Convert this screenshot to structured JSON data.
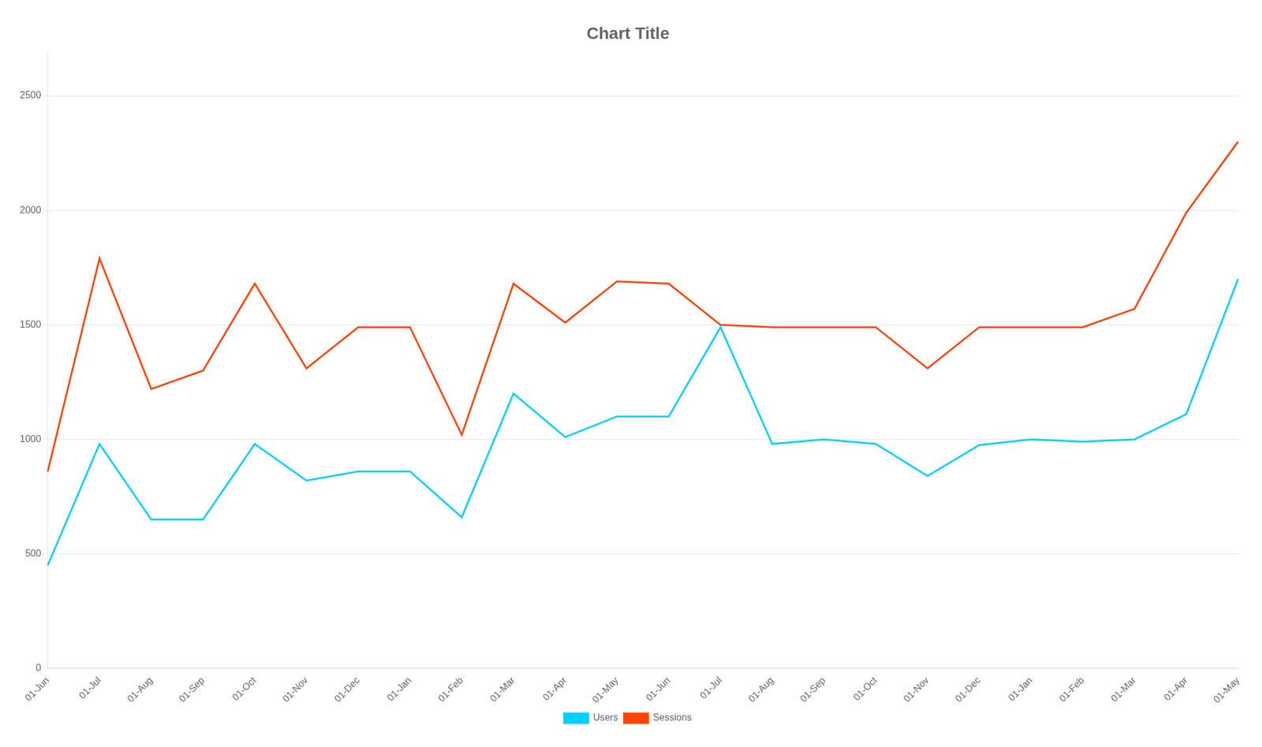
{
  "chart_data": {
    "type": "line",
    "title": "Chart Title",
    "categories": [
      "01-Jun",
      "01-Jul",
      "01-Aug",
      "01-Sep",
      "01-Oct",
      "01-Nov",
      "01-Dec",
      "01-Jan",
      "01-Feb",
      "01-Mar",
      "01-Apr",
      "01-May",
      "01-Jun",
      "01-Jul",
      "01-Aug",
      "01-Sep",
      "01-Oct",
      "01-Nov",
      "01-Dec",
      "01-Jan",
      "01-Feb",
      "01-Mar",
      "01-Apr",
      "01-May"
    ],
    "series": [
      {
        "name": "Users",
        "color": "#00cfff",
        "values": [
          450,
          980,
          650,
          650,
          980,
          820,
          860,
          860,
          660,
          1200,
          1010,
          1100,
          1100,
          1490,
          980,
          1000,
          980,
          840,
          975,
          1000,
          990,
          1000,
          1110,
          1700
        ]
      },
      {
        "name": "Sessions",
        "color": "#ff4500",
        "values": [
          860,
          1790,
          1220,
          1300,
          1680,
          1310,
          1490,
          1490,
          1020,
          1680,
          1510,
          1690,
          1680,
          1500,
          1490,
          1490,
          1490,
          1310,
          1490,
          1490,
          1490,
          1570,
          1990,
          2300
        ]
      }
    ],
    "ylim": [
      0,
      2700
    ],
    "yticks": [
      0,
      500,
      1000,
      1500,
      2000,
      2500
    ],
    "grid": "y",
    "legend": "bottom"
  }
}
